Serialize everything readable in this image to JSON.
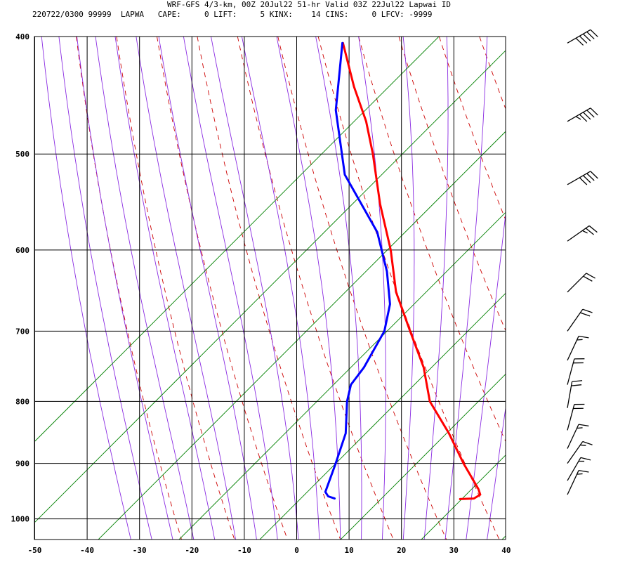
{
  "header": {
    "title": "WRF-GFS 4/3-km, 00Z 20Jul22 51-hr Valid 03Z 22Jul22 Lapwai ID",
    "stats": "220722/0300 99999  LAPWA   CAPE:     0 LIFT:     5 KINX:    14 CINS:     0 LFCV: -9999"
  },
  "chart_data": {
    "type": "line",
    "title": "WRF-GFS 4/3-km, 00Z 20Jul22 51-hr Valid 03Z 22Jul22 Lapwai ID",
    "xlabel": "",
    "ylabel": "",
    "xlim": [
      -50,
      40
    ],
    "ylim": [
      1040,
      400
    ],
    "y_scale": "log",
    "skew": "skew-T log-P",
    "x_ticks": [
      -50,
      -40,
      -30,
      -20,
      -10,
      0,
      10,
      20,
      30,
      40
    ],
    "y_ticks": [
      400,
      500,
      600,
      700,
      800,
      900,
      1000
    ],
    "grid": true,
    "colors": {
      "temperature": "#ff0000",
      "dewpoint": "#0000ff",
      "dry_adiabats": "#cc0000",
      "moist_adiabats": "#8a2be2",
      "mixing_ratio_lines": "#008000",
      "grid": "#000000"
    },
    "series": [
      {
        "key": "temperature",
        "pressure": [
          963,
          962,
          955,
          945,
          930,
          900,
          850,
          800,
          750,
          700,
          650,
          600,
          550,
          500,
          470,
          440,
          405
        ],
        "values": [
          29.6,
          32.2,
          33.1,
          32.3,
          30.7,
          27.4,
          22.2,
          16.0,
          12.1,
          6.6,
          0.8,
          -3.6,
          -9.3,
          -14.7,
          -18.6,
          -23.7,
          -29.3
        ]
      },
      {
        "key": "dewpoint",
        "pressure": [
          962,
          958,
          950,
          900,
          850,
          800,
          775,
          750,
          700,
          665,
          625,
          580,
          520,
          460,
          405
        ],
        "values": [
          5.6,
          4.2,
          3.3,
          3.0,
          2.5,
          0.2,
          -0.4,
          0.7,
          1.7,
          0.6,
          -2.6,
          -7.6,
          -18.4,
          -25.3,
          -29.4
        ]
      }
    ],
    "wind_barbs": [
      {
        "pressure": 405,
        "direction_deg": 240,
        "speed_kt": 50
      },
      {
        "pressure": 470,
        "direction_deg": 240,
        "speed_kt": 45
      },
      {
        "pressure": 530,
        "direction_deg": 240,
        "speed_kt": 40
      },
      {
        "pressure": 590,
        "direction_deg": 235,
        "speed_kt": 25
      },
      {
        "pressure": 650,
        "direction_deg": 225,
        "speed_kt": 20
      },
      {
        "pressure": 700,
        "direction_deg": 215,
        "speed_kt": 20
      },
      {
        "pressure": 740,
        "direction_deg": 205,
        "speed_kt": 15
      },
      {
        "pressure": 775,
        "direction_deg": 195,
        "speed_kt": 20
      },
      {
        "pressure": 810,
        "direction_deg": 190,
        "speed_kt": 20
      },
      {
        "pressure": 845,
        "direction_deg": 195,
        "speed_kt": 20
      },
      {
        "pressure": 875,
        "direction_deg": 205,
        "speed_kt": 15
      },
      {
        "pressure": 900,
        "direction_deg": 215,
        "speed_kt": 15
      },
      {
        "pressure": 930,
        "direction_deg": 210,
        "speed_kt": 15
      },
      {
        "pressure": 955,
        "direction_deg": 205,
        "speed_kt": 15
      }
    ]
  }
}
